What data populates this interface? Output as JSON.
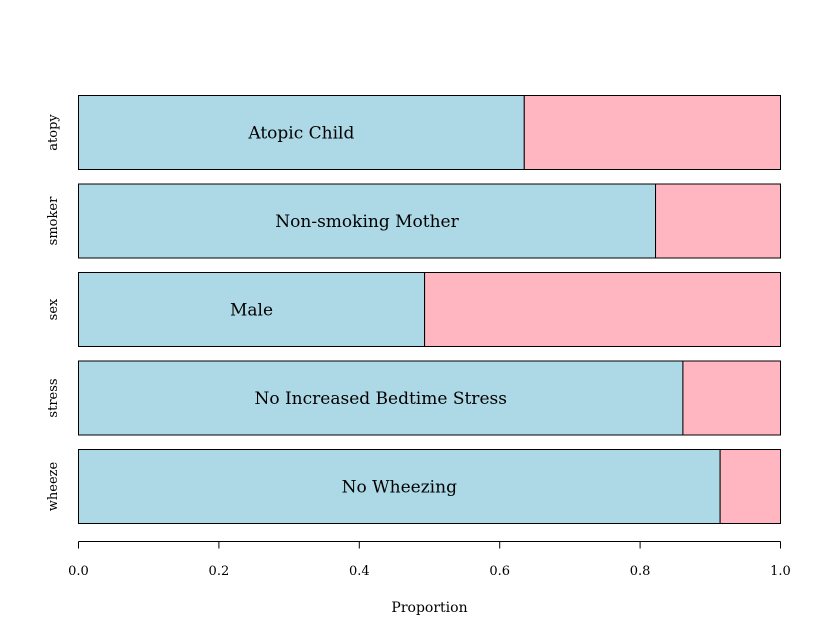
{
  "chart_data": {
    "type": "bar",
    "orientation": "horizontal",
    "stacked": true,
    "xlabel": "Proportion",
    "xlim": [
      0,
      1
    ],
    "xticks": [
      "0.0",
      "0.2",
      "0.4",
      "0.6",
      "0.8",
      "1.0"
    ],
    "colors": {
      "first": "#add8e6",
      "second": "#ffb6c1",
      "stroke": "#000000"
    },
    "rows": [
      {
        "variable": "atopy",
        "label": "Atopic Child",
        "value": 0.635
      },
      {
        "variable": "smoker",
        "label": "Non-smoking Mother",
        "value": 0.822
      },
      {
        "variable": "sex",
        "label": "Male",
        "value": 0.493
      },
      {
        "variable": "stress",
        "label": "No Increased Bedtime Stress",
        "value": 0.861
      },
      {
        "variable": "wheeze",
        "label": "No Wheezing",
        "value": 0.914
      }
    ]
  }
}
